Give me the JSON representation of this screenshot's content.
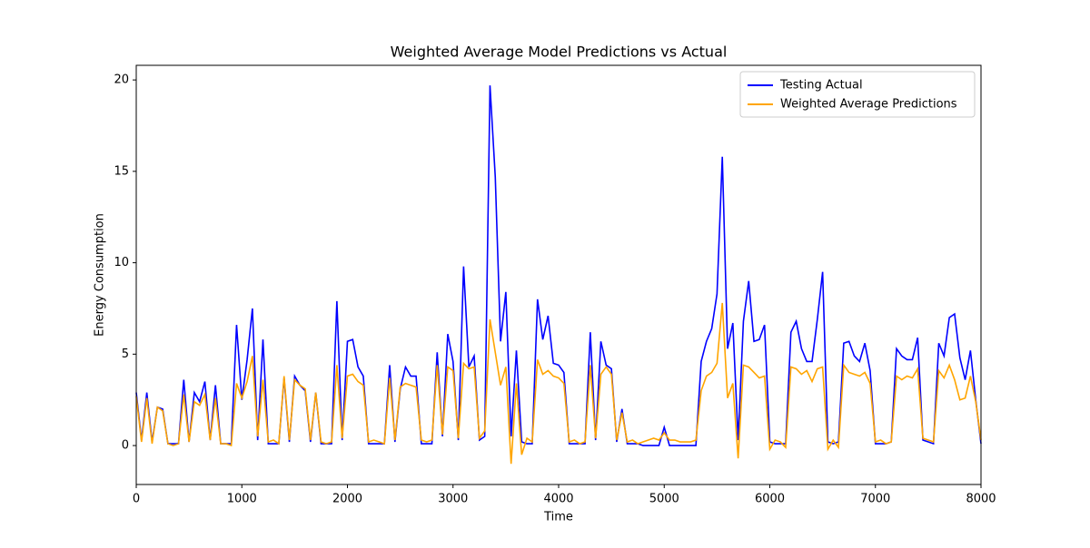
{
  "chart_data": {
    "type": "line",
    "title": "Weighted Average Model Predictions vs Actual",
    "xlabel": "Time",
    "ylabel": "Energy Consumption",
    "x": [
      0,
      50,
      100,
      150,
      200,
      250,
      300,
      350,
      400,
      450,
      500,
      550,
      600,
      650,
      700,
      750,
      800,
      850,
      900,
      950,
      1000,
      1050,
      1100,
      1150,
      1200,
      1250,
      1300,
      1350,
      1400,
      1450,
      1500,
      1550,
      1600,
      1650,
      1700,
      1750,
      1800,
      1850,
      1900,
      1950,
      2000,
      2050,
      2100,
      2150,
      2200,
      2250,
      2300,
      2350,
      2400,
      2450,
      2500,
      2550,
      2600,
      2650,
      2700,
      2750,
      2800,
      2850,
      2900,
      2950,
      3000,
      3050,
      3100,
      3150,
      3200,
      3250,
      3300,
      3350,
      3400,
      3450,
      3500,
      3550,
      3600,
      3650,
      3700,
      3750,
      3800,
      3850,
      3900,
      3950,
      4000,
      4050,
      4100,
      4150,
      4200,
      4250,
      4300,
      4350,
      4400,
      4450,
      4500,
      4550,
      4600,
      4650,
      4700,
      4750,
      4800,
      4850,
      4900,
      4950,
      5000,
      5050,
      5100,
      5150,
      5200,
      5250,
      5300,
      5350,
      5400,
      5450,
      5500,
      5550,
      5600,
      5650,
      5700,
      5750,
      5800,
      5850,
      5900,
      5950,
      6000,
      6050,
      6100,
      6150,
      6200,
      6250,
      6300,
      6350,
      6400,
      6450,
      6500,
      6550,
      6600,
      6650,
      6700,
      6750,
      6800,
      6850,
      6900,
      6950,
      7000,
      7050,
      7100,
      7150,
      7200,
      7250,
      7300,
      7350,
      7400,
      7450,
      7500,
      7550,
      7600,
      7650,
      7700,
      7750,
      7800,
      7850,
      7900,
      7950,
      8000
    ],
    "series": [
      {
        "name": "Testing Actual",
        "color": "#0000ff",
        "values": [
          2.9,
          0.3,
          2.9,
          0.2,
          2.1,
          2.0,
          0.1,
          0.1,
          0.1,
          3.6,
          0.2,
          2.9,
          2.4,
          3.5,
          0.3,
          3.3,
          0.1,
          0.1,
          0.1,
          6.6,
          2.5,
          4.7,
          7.5,
          0.3,
          5.8,
          0.1,
          0.1,
          0.1,
          3.7,
          0.2,
          3.8,
          3.3,
          3.0,
          0.2,
          2.9,
          0.1,
          0.1,
          0.1,
          7.9,
          0.3,
          5.7,
          5.8,
          4.3,
          3.8,
          0.1,
          0.1,
          0.1,
          0.1,
          4.4,
          0.2,
          3.1,
          4.3,
          3.8,
          3.8,
          0.1,
          0.1,
          0.1,
          5.1,
          0.5,
          6.1,
          4.6,
          0.3,
          9.8,
          4.3,
          4.9,
          0.3,
          0.5,
          19.7,
          14.7,
          5.7,
          8.4,
          0.5,
          5.2,
          0.2,
          0.1,
          0.1,
          8.0,
          5.8,
          7.1,
          4.5,
          4.4,
          4.0,
          0.1,
          0.1,
          0.1,
          0.1,
          6.2,
          0.3,
          5.7,
          4.4,
          4.2,
          0.2,
          2.0,
          0.1,
          0.1,
          0.1,
          0.0,
          0.0,
          0.0,
          0.0,
          1.0,
          0.0,
          0.0,
          0.0,
          0.0,
          0.0,
          0.0,
          4.6,
          5.7,
          6.4,
          8.3,
          15.8,
          5.3,
          6.7,
          0.3,
          6.8,
          9.0,
          5.7,
          5.8,
          6.6,
          0.2,
          0.1,
          0.1,
          0.1,
          6.2,
          6.8,
          5.3,
          4.6,
          4.6,
          6.9,
          9.5,
          0.2,
          0.1,
          0.2,
          5.6,
          5.7,
          4.9,
          4.6,
          5.6,
          4.1,
          0.1,
          0.1,
          0.1,
          0.2,
          5.3,
          4.9,
          4.7,
          4.7,
          5.9,
          0.3,
          0.2,
          0.1,
          5.6,
          4.9,
          7.0,
          7.2,
          4.8,
          3.6,
          5.2,
          2.5,
          0.1
        ]
      },
      {
        "name": "Weighted Average Predictions",
        "color": "#ffa500",
        "values": [
          2.7,
          0.2,
          2.6,
          0.1,
          2.1,
          1.9,
          0.1,
          0.0,
          0.1,
          2.8,
          0.2,
          2.4,
          2.2,
          2.8,
          0.3,
          2.6,
          0.1,
          0.1,
          0.0,
          3.4,
          2.6,
          3.5,
          4.9,
          0.5,
          3.6,
          0.2,
          0.3,
          0.1,
          3.8,
          0.3,
          3.6,
          3.3,
          3.1,
          0.3,
          2.9,
          0.2,
          0.1,
          0.2,
          4.4,
          0.4,
          3.8,
          3.9,
          3.5,
          3.3,
          0.2,
          0.3,
          0.2,
          0.1,
          3.7,
          0.3,
          3.2,
          3.4,
          3.3,
          3.2,
          0.3,
          0.2,
          0.3,
          4.4,
          0.6,
          4.3,
          4.1,
          0.4,
          4.5,
          4.2,
          4.3,
          0.4,
          0.8,
          6.9,
          5.1,
          3.3,
          4.3,
          -1.0,
          3.4,
          -0.5,
          0.4,
          0.2,
          4.7,
          3.9,
          4.1,
          3.8,
          3.7,
          3.4,
          0.2,
          0.3,
          0.1,
          0.2,
          4.4,
          0.4,
          3.9,
          4.3,
          3.9,
          0.3,
          1.8,
          0.2,
          0.3,
          0.1,
          0.2,
          0.3,
          0.4,
          0.3,
          0.7,
          0.3,
          0.3,
          0.2,
          0.2,
          0.2,
          0.3,
          3.0,
          3.8,
          4.0,
          4.5,
          7.8,
          2.6,
          3.4,
          -0.7,
          4.4,
          4.3,
          4.0,
          3.7,
          3.8,
          -0.2,
          0.3,
          0.2,
          -0.1,
          4.3,
          4.2,
          3.9,
          4.1,
          3.5,
          4.2,
          4.3,
          -0.2,
          0.3,
          -0.1,
          4.4,
          4.0,
          3.9,
          3.8,
          4.0,
          3.4,
          0.2,
          0.3,
          0.1,
          0.2,
          3.8,
          3.6,
          3.8,
          3.7,
          4.2,
          0.4,
          0.3,
          0.2,
          4.1,
          3.7,
          4.4,
          3.6,
          2.5,
          2.6,
          3.8,
          2.4,
          0.3
        ]
      }
    ],
    "xlim": [
      0,
      8000
    ],
    "xticks": [
      0,
      1000,
      2000,
      3000,
      4000,
      5000,
      6000,
      7000,
      8000
    ],
    "ylim": [
      -2.13,
      20.8
    ],
    "yticks": [
      0,
      5,
      10,
      15,
      20
    ],
    "legend": "upper right"
  }
}
